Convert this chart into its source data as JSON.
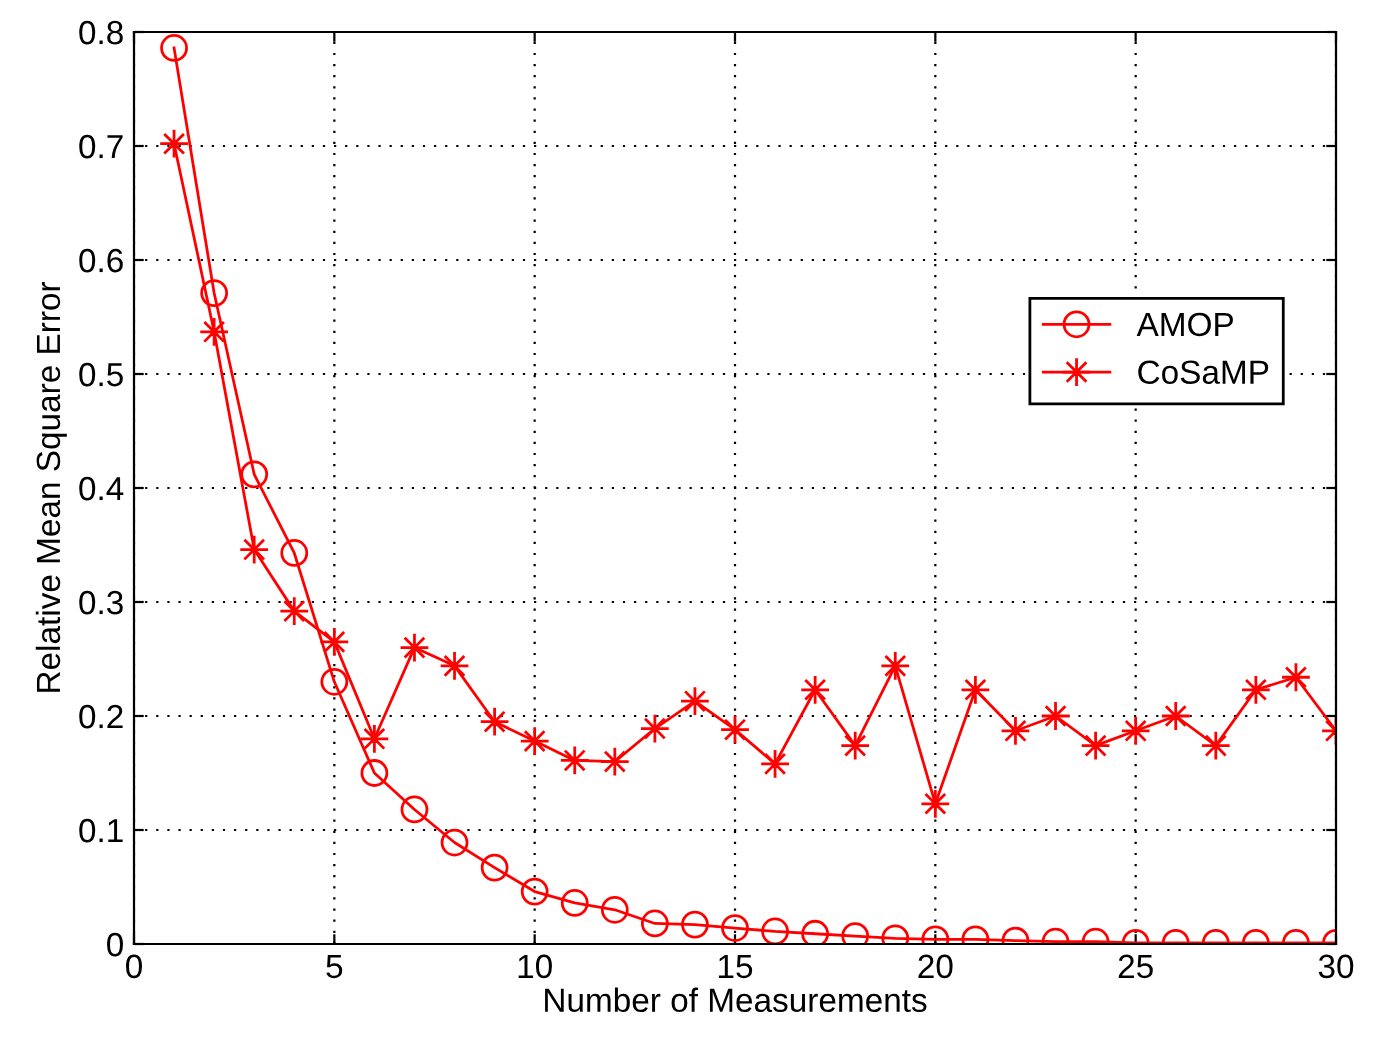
{
  "chart_data": {
    "type": "line",
    "xlabel": "Number of Measurements",
    "ylabel": "Relative Mean Square Error",
    "x": [
      1,
      2,
      3,
      4,
      5,
      6,
      7,
      8,
      9,
      10,
      11,
      12,
      13,
      14,
      15,
      16,
      17,
      18,
      19,
      20,
      21,
      22,
      23,
      24,
      25,
      26,
      27,
      28,
      29,
      30
    ],
    "series": [
      {
        "name": "AMOP",
        "color": "#ff0000",
        "marker": "circle",
        "values": [
          0.786,
          0.571,
          0.412,
          0.343,
          0.23,
          0.15,
          0.118,
          0.089,
          0.067,
          0.046,
          0.036,
          0.03,
          0.018,
          0.017,
          0.014,
          0.011,
          0.009,
          0.007,
          0.005,
          0.004,
          0.004,
          0.003,
          0.002,
          0.002,
          0.001,
          0.001,
          0.001,
          0.001,
          0.001,
          0.001
        ]
      },
      {
        "name": "CoSaMP",
        "color": "#ff0000",
        "marker": "star",
        "values": [
          0.702,
          0.537,
          0.346,
          0.292,
          0.265,
          0.18,
          0.26,
          0.244,
          0.195,
          0.178,
          0.161,
          0.16,
          0.189,
          0.213,
          0.188,
          0.158,
          0.223,
          0.174,
          0.244,
          0.123,
          0.223,
          0.187,
          0.2,
          0.174,
          0.187,
          0.2,
          0.174,
          0.223,
          0.234,
          0.187
        ]
      }
    ],
    "xlim": [
      0,
      30
    ],
    "xticks": [
      0,
      5,
      10,
      15,
      20,
      25,
      30
    ],
    "ylim": [
      0,
      0.8
    ],
    "yticks": [
      0,
      0.1,
      0.2,
      0.3,
      0.4,
      0.5,
      0.6,
      0.7,
      0.8
    ],
    "grid": true,
    "legend": "right",
    "line_style": "solid"
  }
}
